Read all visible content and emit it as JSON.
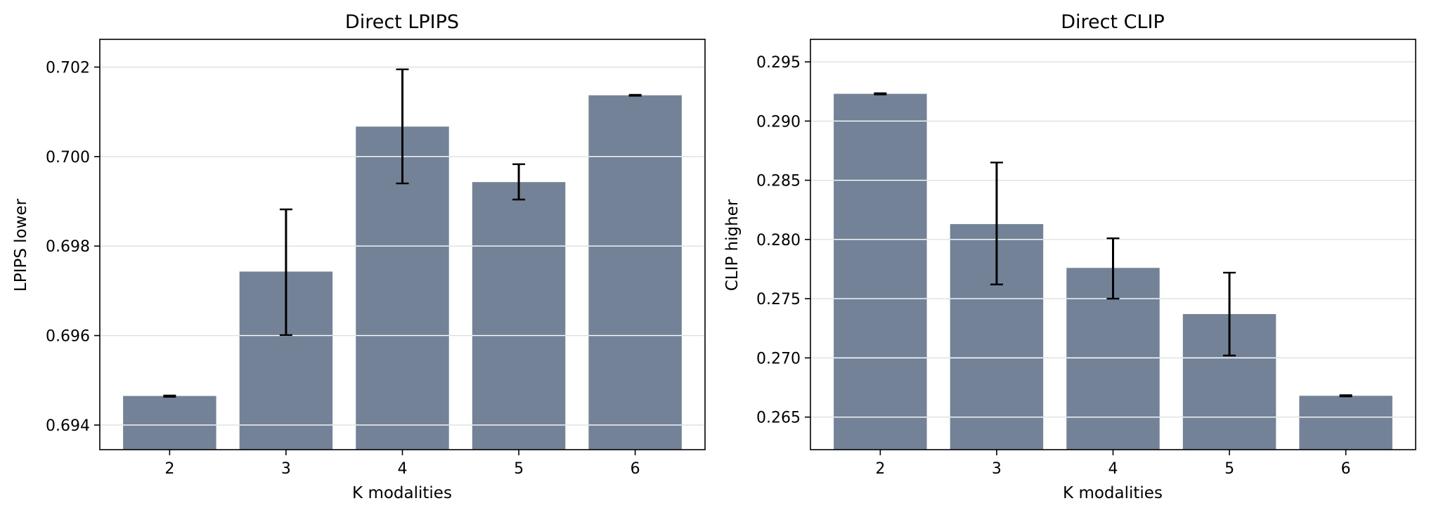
{
  "colors": {
    "bar": "#738297",
    "grid": "#dcdcdc",
    "bar_grid": "#ffffff",
    "error_bar": "#000000",
    "axes": "#000000"
  },
  "chart_data": [
    {
      "type": "bar",
      "title": "Direct LPIPS",
      "xlabel": "K modalities",
      "ylabel": "LPIPS lower",
      "categories": [
        "2",
        "3",
        "4",
        "5",
        "6"
      ],
      "values": [
        0.69465,
        0.69743,
        0.70067,
        0.69943,
        0.70137
      ],
      "error_low": [
        0.69463,
        0.69601,
        0.6994,
        0.69904,
        0.70136
      ],
      "error_high": [
        0.69466,
        0.69882,
        0.70195,
        0.69983,
        0.70138
      ],
      "ylim": [
        0.69345,
        0.70262
      ],
      "yticks": [
        0.694,
        0.696,
        0.698,
        0.7,
        0.702
      ],
      "ytick_labels": [
        "0.694",
        "0.696",
        "0.698",
        "0.700",
        "0.702"
      ],
      "grid": "y"
    },
    {
      "type": "bar",
      "title": "Direct CLIP",
      "xlabel": "K modalities",
      "ylabel": "CLIP higher",
      "categories": [
        "2",
        "3",
        "4",
        "5",
        "6"
      ],
      "values": [
        0.2923,
        0.2813,
        0.2776,
        0.2737,
        0.2668
      ],
      "error_low": [
        0.29225,
        0.2762,
        0.275,
        0.2702,
        0.26675
      ],
      "error_high": [
        0.29235,
        0.2865,
        0.2801,
        0.2772,
        0.26685
      ],
      "ylim": [
        0.26225,
        0.2969
      ],
      "yticks": [
        0.265,
        0.27,
        0.275,
        0.28,
        0.285,
        0.29,
        0.295
      ],
      "ytick_labels": [
        "0.265",
        "0.270",
        "0.275",
        "0.280",
        "0.285",
        "0.290",
        "0.295"
      ],
      "grid": "y"
    }
  ]
}
